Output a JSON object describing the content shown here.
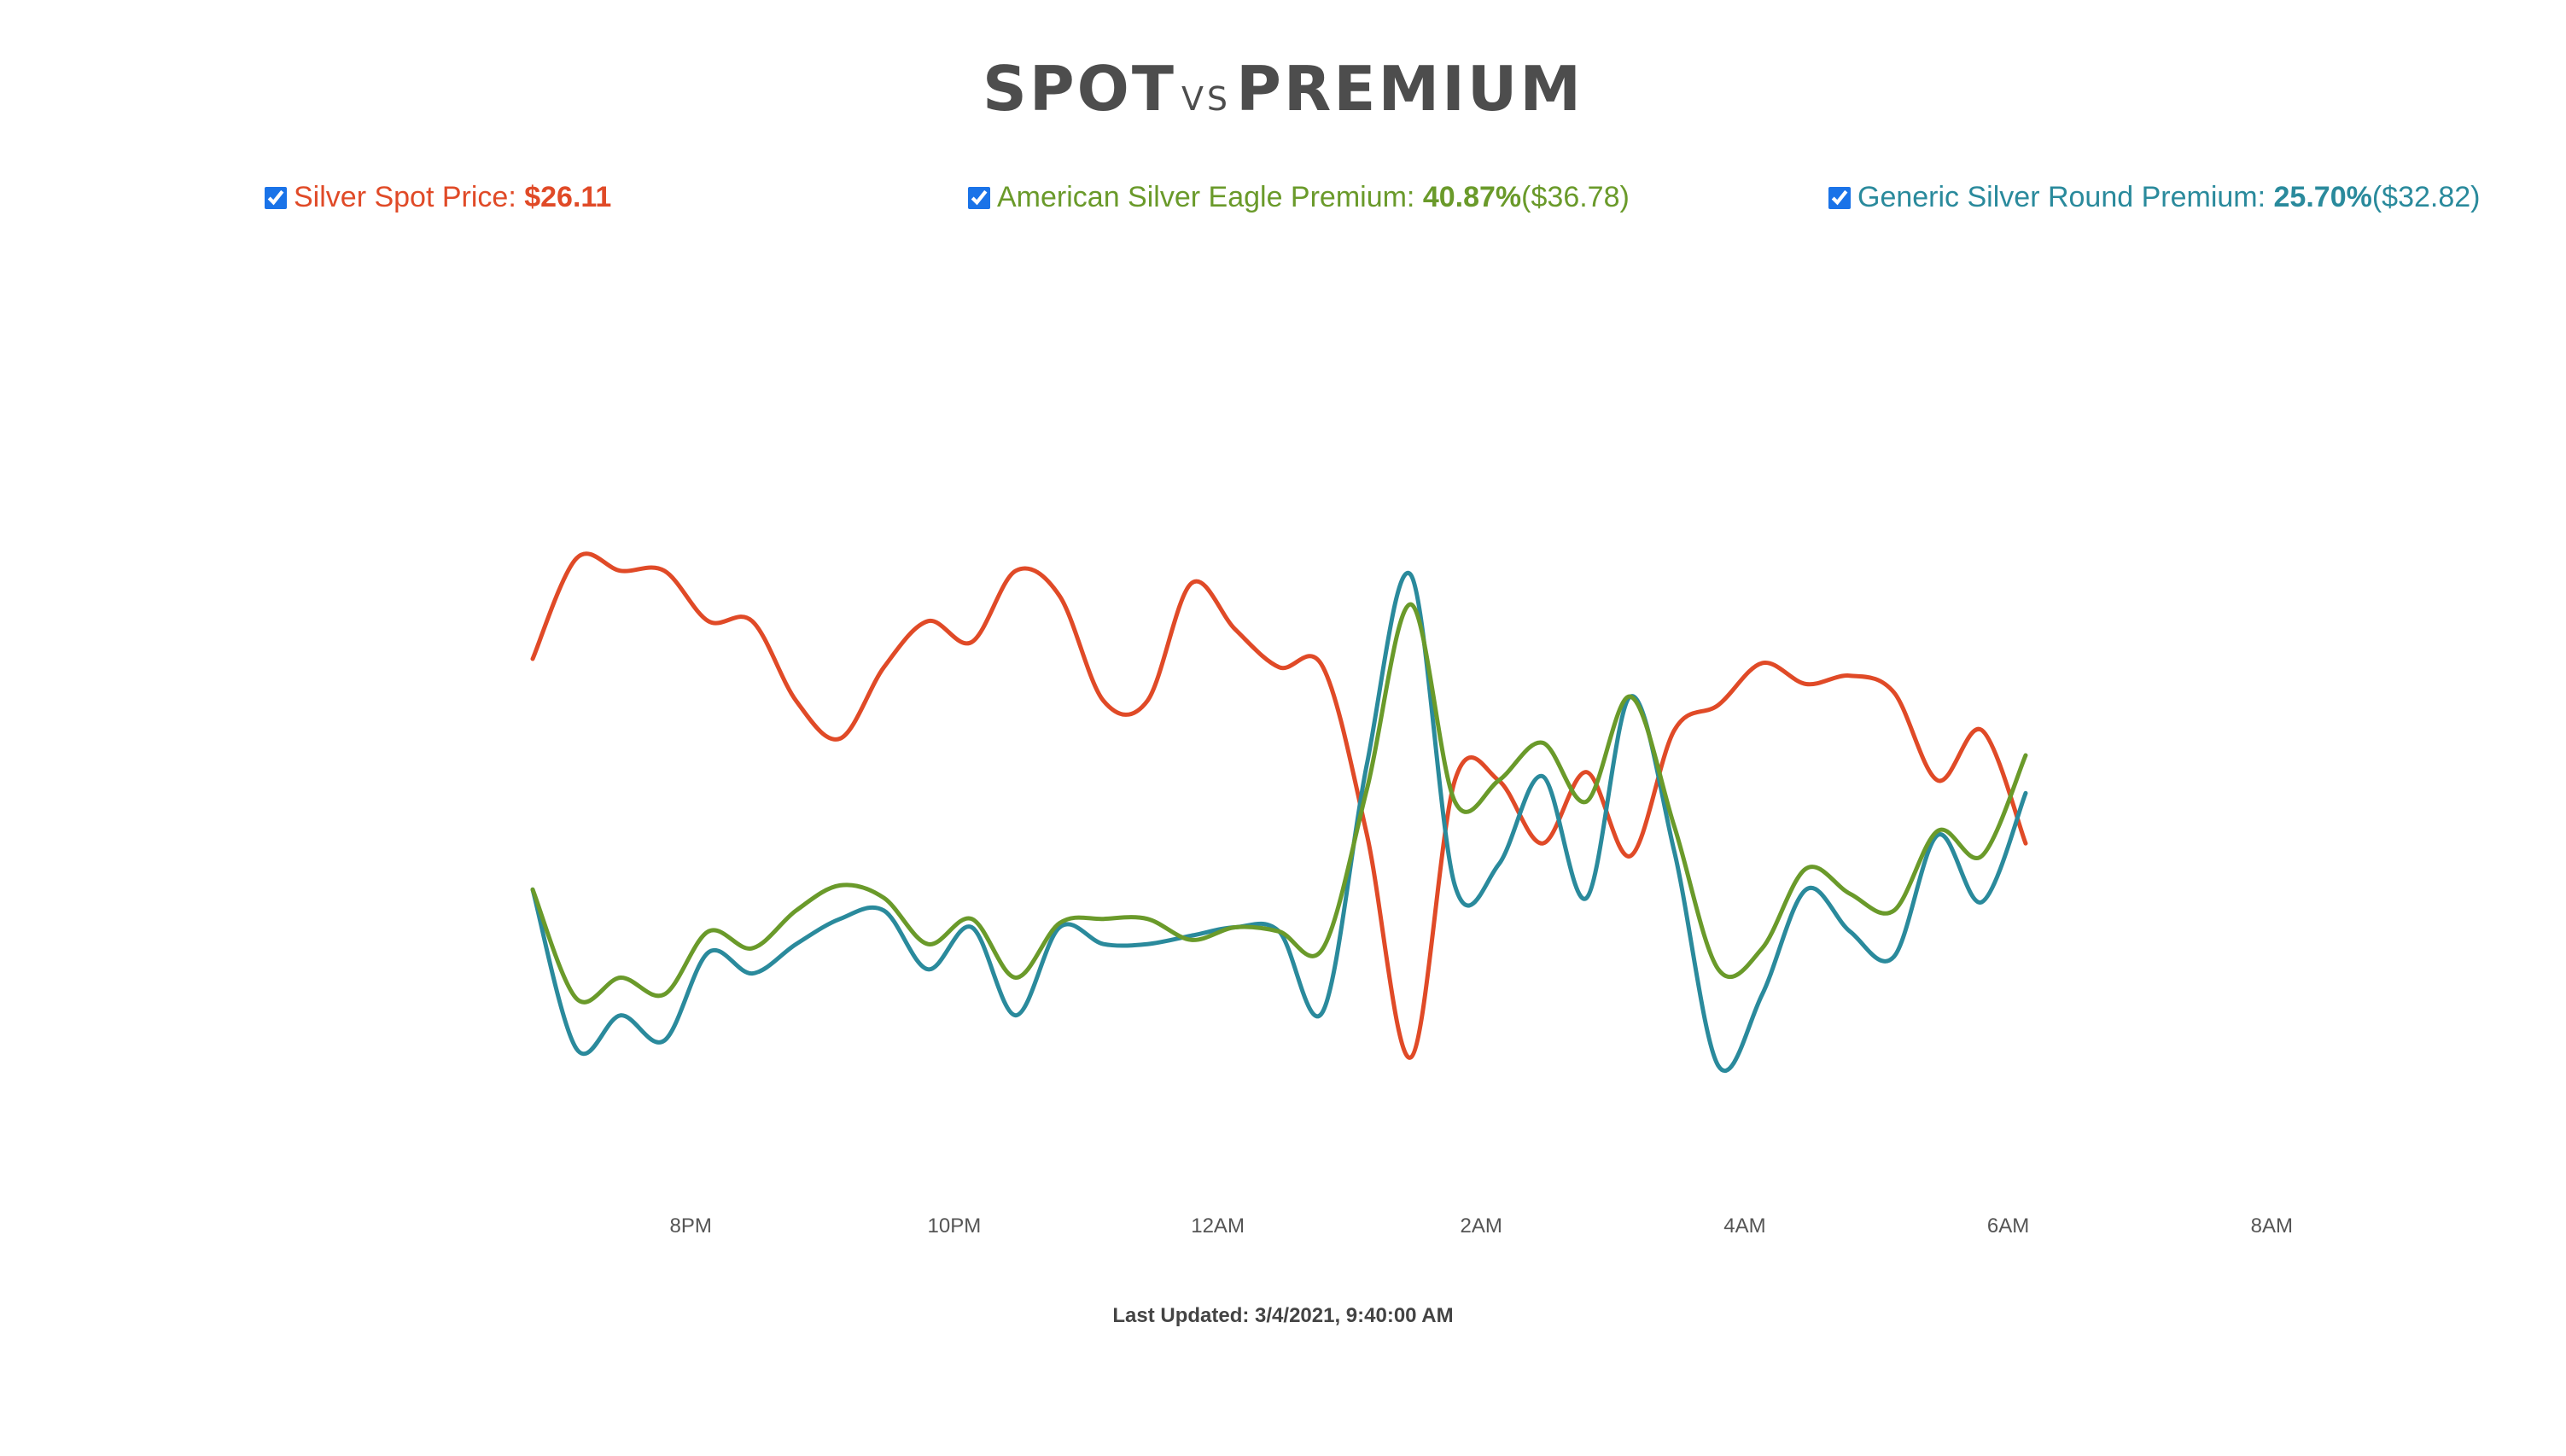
{
  "header": {
    "title_part1": "SPOT",
    "title_vs": "VS",
    "title_part2": "PREMIUM"
  },
  "legend": [
    {
      "label": "Silver Spot Price: ",
      "value": "$26.11",
      "extra": "",
      "color": "#e04a27",
      "checked": true
    },
    {
      "label": "American Silver Eagle Premium: ",
      "value": "40.87%",
      "extra": " ($36.78)",
      "color": "#6a9a2a",
      "checked": true
    },
    {
      "label": "Generic Silver Round Premium: ",
      "value": "25.70%",
      "extra": " ($32.82)",
      "color": "#2a8a9c",
      "checked": true
    }
  ],
  "footer": {
    "last_updated": "Last Updated: 3/4/2021, 9:40:00 AM"
  },
  "chart_data": {
    "type": "line",
    "x_start_hour": 18.8,
    "x_step_hours": 0.3333,
    "x_ticks": [
      {
        "hour": 20,
        "label": "8PM"
      },
      {
        "hour": 22,
        "label": "10PM"
      },
      {
        "hour": 24,
        "label": "12AM"
      },
      {
        "hour": 26,
        "label": "2AM"
      },
      {
        "hour": 28,
        "label": "4AM"
      },
      {
        "hour": 30,
        "label": "6AM"
      },
      {
        "hour": 32,
        "label": "8AM"
      }
    ],
    "series": [
      {
        "name": "Silver Spot Price",
        "color": "#e04a27",
        "values": [
          0.65,
          0.89,
          0.86,
          0.86,
          0.74,
          0.74,
          0.55,
          0.46,
          0.63,
          0.74,
          0.69,
          0.86,
          0.8,
          0.55,
          0.55,
          0.83,
          0.72,
          0.63,
          0.63,
          0.23,
          -0.3,
          0.36,
          0.36,
          0.21,
          0.38,
          0.18,
          0.48,
          0.54,
          0.64,
          0.59,
          0.61,
          0.57,
          0.36,
          0.48,
          0.21
        ]
      },
      {
        "name": "American Silver Eagle Premium",
        "color": "#6a9a2a",
        "values": [
          0.1,
          -0.16,
          -0.11,
          -0.15,
          0.0,
          -0.04,
          0.05,
          0.11,
          0.08,
          -0.03,
          0.03,
          -0.11,
          0.02,
          0.03,
          0.03,
          -0.02,
          0.01,
          0.0,
          -0.04,
          0.34,
          0.78,
          0.31,
          0.36,
          0.45,
          0.31,
          0.56,
          0.25,
          -0.09,
          -0.04,
          0.15,
          0.09,
          0.05,
          0.24,
          0.18,
          0.42
        ]
      },
      {
        "name": "Generic Silver Round Premium",
        "color": "#2a8a9c",
        "values": [
          0.1,
          -0.28,
          -0.2,
          -0.26,
          -0.05,
          -0.1,
          -0.03,
          0.03,
          0.05,
          -0.09,
          0.01,
          -0.2,
          0.01,
          -0.03,
          -0.03,
          -0.01,
          0.01,
          0.0,
          -0.19,
          0.4,
          0.85,
          0.11,
          0.16,
          0.37,
          0.08,
          0.56,
          0.19,
          -0.32,
          -0.15,
          0.1,
          0.0,
          -0.06,
          0.23,
          0.07,
          0.33
        ]
      }
    ],
    "ylim": [
      -0.4,
      1.0
    ]
  }
}
